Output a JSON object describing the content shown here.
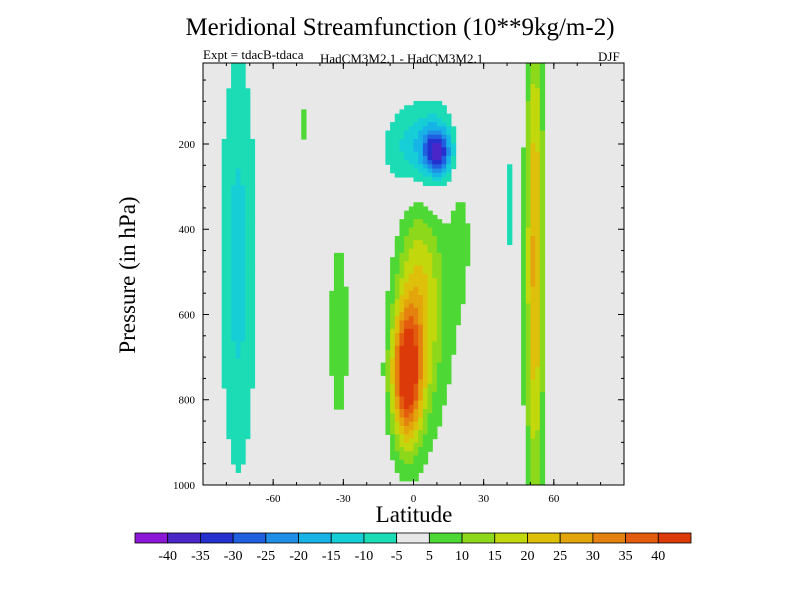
{
  "chart_data": {
    "type": "contour",
    "title": "Meridional Streamfunction (10**9kg/m-2)",
    "subtitle_left": "Expt = tdacB-tdaca",
    "subtitle_center": "HadCM3M2.1 - HadCM3M2.1",
    "subtitle_right": "DJF",
    "xlabel": "Latitude",
    "ylabel": "Pressure (in hPa)",
    "xlim": [
      -90,
      90
    ],
    "ylim": [
      1000,
      10
    ],
    "y_inverted": true,
    "x_ticks": [
      -60,
      -30,
      0,
      30,
      60
    ],
    "y_ticks": [
      200,
      400,
      600,
      800,
      1000
    ],
    "colorbar": {
      "levels": [
        -45,
        -40,
        -35,
        -30,
        -25,
        -20,
        -15,
        -10,
        -5,
        5,
        10,
        15,
        20,
        25,
        30,
        35,
        40,
        45
      ],
      "labels": [
        -40,
        -35,
        -30,
        -25,
        -20,
        -15,
        -10,
        -5,
        5,
        10,
        15,
        20,
        25,
        30,
        35,
        40
      ],
      "colors": [
        "#8c17d6",
        "#4a26c9",
        "#2431cf",
        "#1f5fe0",
        "#1f8ee6",
        "#17b3e6",
        "#16cfd6",
        "#1cdcb6",
        "#e8e8e8",
        "#4ed836",
        "#8ed81c",
        "#c2d70c",
        "#dec00a",
        "#e3a40c",
        "#e5820f",
        "#e35c0e",
        "#dc3a08"
      ]
    },
    "features": [
      {
        "name": "max-positive-cell",
        "lat_center": -3,
        "p_center": 750,
        "value": 40
      },
      {
        "name": "upper-negative-cell",
        "lat_center": 10,
        "p_center": 215,
        "value": -25
      },
      {
        "name": "positive-band-50N",
        "lat_center": 52,
        "value": 20
      },
      {
        "name": "negative-band-southern",
        "lat_center": -75,
        "value": -10
      }
    ]
  }
}
